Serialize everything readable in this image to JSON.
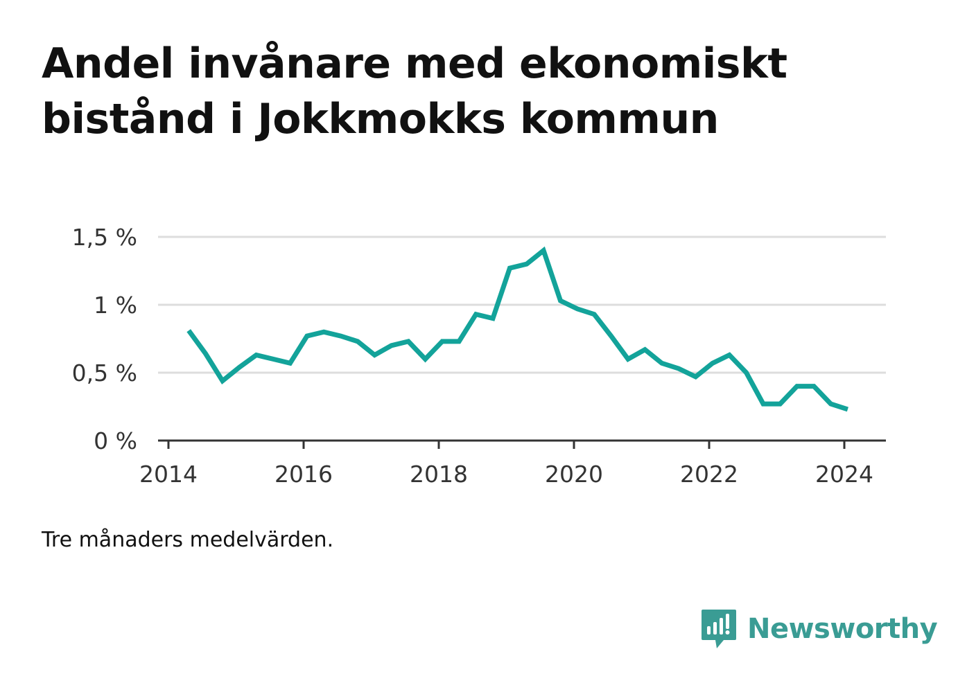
{
  "title": "Andel invånare med ekonomiskt bistånd i Jokkmokks kommun",
  "footnote": "Tre månaders medelvärden.",
  "brand": {
    "name": "Newsworthy",
    "icon": "newsworthy-logo-icon"
  },
  "colors": {
    "line": "#13a39a",
    "grid": "#dddddd",
    "axis": "#333333",
    "brand": "#3a9c94"
  },
  "chart_data": {
    "type": "line",
    "xlabel": "",
    "ylabel": "",
    "xlim": [
      2014,
      2024.6
    ],
    "ylim": [
      0,
      1.5
    ],
    "x_ticks": [
      {
        "value": 2014,
        "label": "2014"
      },
      {
        "value": 2016,
        "label": "2016"
      },
      {
        "value": 2018,
        "label": "2018"
      },
      {
        "value": 2020,
        "label": "2020"
      },
      {
        "value": 2022,
        "label": "2022"
      },
      {
        "value": 2024,
        "label": "2024"
      }
    ],
    "y_ticks": [
      {
        "value": 0,
        "label": "0 %"
      },
      {
        "value": 0.5,
        "label": "0,5 %"
      },
      {
        "value": 1,
        "label": "1 %"
      },
      {
        "value": 1.5,
        "label": "1,5 %"
      }
    ],
    "grid": true,
    "legend": "none",
    "series": [
      {
        "x": [
          2014.3,
          2014.55,
          2014.8,
          2015.05,
          2015.3,
          2015.55,
          2015.8,
          2016.05,
          2016.3,
          2016.55,
          2016.8,
          2017.05,
          2017.3,
          2017.55,
          2017.8,
          2018.05,
          2018.3,
          2018.55,
          2018.8,
          2019.05,
          2019.3,
          2019.55,
          2019.8,
          2020.05,
          2020.3,
          2020.55,
          2020.8,
          2021.05,
          2021.3,
          2021.55,
          2021.8,
          2022.05,
          2022.3,
          2022.55,
          2022.8,
          2023.05,
          2023.3,
          2023.55,
          2023.8,
          2024.05
        ],
        "values": [
          0.81,
          0.64,
          0.44,
          0.54,
          0.63,
          0.6,
          0.57,
          0.77,
          0.8,
          0.77,
          0.73,
          0.63,
          0.7,
          0.73,
          0.6,
          0.73,
          0.73,
          0.93,
          0.9,
          1.27,
          1.3,
          1.4,
          1.03,
          0.97,
          0.93,
          0.77,
          0.6,
          0.67,
          0.57,
          0.53,
          0.47,
          0.57,
          0.63,
          0.5,
          0.27,
          0.27,
          0.4,
          0.4,
          0.27,
          0.23
        ]
      }
    ]
  }
}
